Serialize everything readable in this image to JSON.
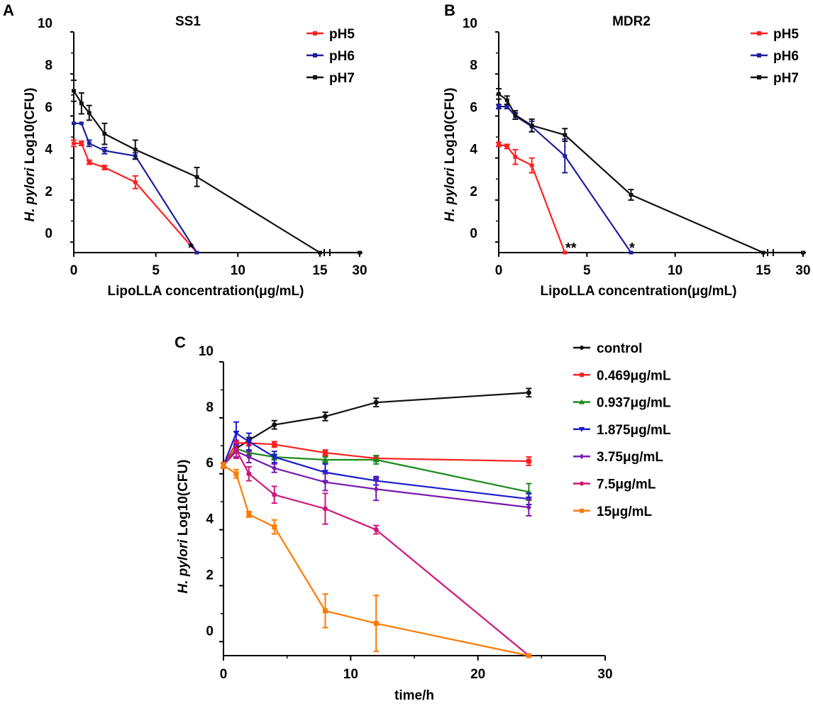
{
  "chart_data": [
    {
      "panel": "A",
      "type": "line",
      "title": "SS1",
      "xlabel": "LipoLLA concentration(μg/mL)",
      "ylabel_italic": "H. pylori",
      "ylabel_rest": "Log10(CFU)",
      "xticks": [
        "0",
        "5",
        "10",
        "15",
        "30"
      ],
      "yticks": [
        "0",
        "2",
        "4",
        "6",
        "8",
        "10"
      ],
      "ylim": [
        -0.5,
        10
      ],
      "asterisks": [
        "*"
      ],
      "series": [
        {
          "name": "pH5",
          "color": "#ff2020",
          "points": [
            [
              0,
              4.7,
              0.15
            ],
            [
              0.47,
              4.7,
              0.1
            ],
            [
              0.94,
              3.8,
              0.1
            ],
            [
              1.875,
              3.55,
              0.1
            ],
            [
              3.75,
              2.85,
              0.3
            ],
            [
              7.5,
              -0.5,
              0
            ]
          ]
        },
        {
          "name": "pH6",
          "color": "#1f1f9e",
          "points": [
            [
              0,
              5.65,
              0
            ],
            [
              0.47,
              5.65,
              0
            ],
            [
              0.94,
              4.7,
              0.15
            ],
            [
              1.875,
              4.35,
              0.15
            ],
            [
              3.75,
              4.1,
              0.15
            ],
            [
              7.5,
              -0.5,
              0
            ]
          ]
        },
        {
          "name": "pH7",
          "color": "#111111",
          "points": [
            [
              0,
              7.2,
              0.5
            ],
            [
              0.47,
              6.6,
              0.5
            ],
            [
              0.94,
              6.15,
              0.35
            ],
            [
              1.875,
              5.15,
              0.5
            ],
            [
              3.75,
              4.4,
              0.45
            ],
            [
              7.5,
              3.1,
              0.45
            ],
            [
              15,
              -0.5,
              0
            ],
            [
              30,
              -0.5,
              0
            ]
          ]
        }
      ]
    },
    {
      "panel": "B",
      "type": "line",
      "title": "MDR2",
      "xlabel": "LipoLLA concentration(μg/mL)",
      "ylabel_italic": "H. pylori",
      "ylabel_rest": "Log10(CFU)",
      "xticks": [
        "0",
        "5",
        "10",
        "15",
        "30"
      ],
      "yticks": [
        "0",
        "2",
        "4",
        "6",
        "8",
        "10"
      ],
      "ylim": [
        -0.5,
        10
      ],
      "asterisks": [
        "**",
        "*"
      ],
      "series": [
        {
          "name": "pH5",
          "color": "#ff2020",
          "points": [
            [
              0,
              4.65,
              0.1
            ],
            [
              0.47,
              4.55,
              0.1
            ],
            [
              0.94,
              4.05,
              0.35
            ],
            [
              1.875,
              3.65,
              0.35
            ],
            [
              3.75,
              -0.5,
              0
            ]
          ]
        },
        {
          "name": "pH6",
          "color": "#1f1f9e",
          "points": [
            [
              0,
              6.45,
              0.1
            ],
            [
              0.47,
              6.45,
              0.1
            ],
            [
              0.94,
              6.0,
              0.15
            ],
            [
              1.875,
              5.5,
              0.25
            ],
            [
              3.75,
              4.1,
              0.8
            ],
            [
              7.5,
              -0.5,
              0
            ]
          ]
        },
        {
          "name": "pH7",
          "color": "#111111",
          "points": [
            [
              0,
              7.05,
              0.25
            ],
            [
              0.47,
              6.75,
              0.2
            ],
            [
              0.94,
              6.05,
              0.2
            ],
            [
              1.875,
              5.55,
              0.3
            ],
            [
              3.75,
              5.1,
              0.3
            ],
            [
              7.5,
              2.25,
              0.25
            ],
            [
              15,
              -0.5,
              0
            ],
            [
              30,
              -0.5,
              0
            ]
          ]
        }
      ]
    },
    {
      "panel": "C",
      "type": "line",
      "title": "",
      "xlabel": "time/h",
      "ylabel_italic": "H. pylori",
      "ylabel_rest": "Log10(CFU)",
      "xticks": [
        "0",
        "10",
        "20",
        "30"
      ],
      "yticks": [
        "0",
        "2",
        "4",
        "6",
        "8",
        "10"
      ],
      "xlim": [
        0,
        30
      ],
      "ylim": [
        -0.5,
        10
      ],
      "series": [
        {
          "name": "control",
          "color": "#111111",
          "marker": "circle",
          "points": [
            [
              0,
              6.3,
              0.1
            ],
            [
              1,
              6.9,
              0.1
            ],
            [
              2,
              7.2,
              0.1
            ],
            [
              4,
              7.75,
              0.15
            ],
            [
              8,
              8.05,
              0.15
            ],
            [
              12,
              8.55,
              0.15
            ],
            [
              24,
              8.9,
              0.15
            ]
          ]
        },
        {
          "name": "0.469μg/mL",
          "color": "#ff2020",
          "marker": "square",
          "points": [
            [
              0,
              6.3,
              0.1
            ],
            [
              1,
              7.1,
              0.1
            ],
            [
              2,
              7.1,
              0.1
            ],
            [
              4,
              7.05,
              0.1
            ],
            [
              8,
              6.75,
              0.1
            ],
            [
              12,
              6.55,
              0.1
            ],
            [
              24,
              6.45,
              0.15
            ]
          ]
        },
        {
          "name": "0.937μg/mL",
          "color": "#1a8a1a",
          "marker": "triangle",
          "points": [
            [
              0,
              6.3,
              0.1
            ],
            [
              1,
              6.9,
              0.1
            ],
            [
              2,
              6.75,
              0.1
            ],
            [
              4,
              6.6,
              0.1
            ],
            [
              8,
              6.5,
              0.1
            ],
            [
              12,
              6.5,
              0.15
            ],
            [
              24,
              5.35,
              0.3
            ]
          ]
        },
        {
          "name": "1.875μg/mL",
          "color": "#1a1ad0",
          "marker": "triangle-down",
          "points": [
            [
              0,
              6.3,
              0.1
            ],
            [
              1,
              7.45,
              0.4
            ],
            [
              2,
              7.15,
              0.3
            ],
            [
              4,
              6.6,
              0.2
            ],
            [
              8,
              6.05,
              0.3
            ],
            [
              12,
              5.75,
              0.15
            ],
            [
              24,
              5.1,
              0.2
            ]
          ]
        },
        {
          "name": "3.75μg/mL",
          "color": "#7a1ab0",
          "marker": "diamond",
          "points": [
            [
              0,
              6.3,
              0.1
            ],
            [
              1,
              6.8,
              0.2
            ],
            [
              2,
              6.6,
              0.2
            ],
            [
              4,
              6.2,
              0.15
            ],
            [
              8,
              5.7,
              0.3
            ],
            [
              12,
              5.45,
              0.4
            ],
            [
              24,
              4.8,
              0.3
            ]
          ]
        },
        {
          "name": "7.5μg/mL",
          "color": "#d0157a",
          "marker": "circle",
          "points": [
            [
              0,
              6.3,
              0.1
            ],
            [
              1,
              6.85,
              0.3
            ],
            [
              2,
              6.0,
              0.25
            ],
            [
              4,
              5.25,
              0.3
            ],
            [
              8,
              4.75,
              0.55
            ],
            [
              12,
              4.0,
              0.15
            ],
            [
              24,
              -0.5,
              0
            ]
          ]
        },
        {
          "name": "15μg/mL",
          "color": "#ff7a00",
          "marker": "square",
          "points": [
            [
              0,
              6.3,
              0.1
            ],
            [
              1,
              6.0,
              0.15
            ],
            [
              2,
              4.55,
              0.1
            ],
            [
              4,
              4.1,
              0.25
            ],
            [
              8,
              1.1,
              0.6
            ],
            [
              12,
              0.65,
              1.0
            ],
            [
              24,
              -0.5,
              0
            ]
          ]
        }
      ]
    }
  ]
}
